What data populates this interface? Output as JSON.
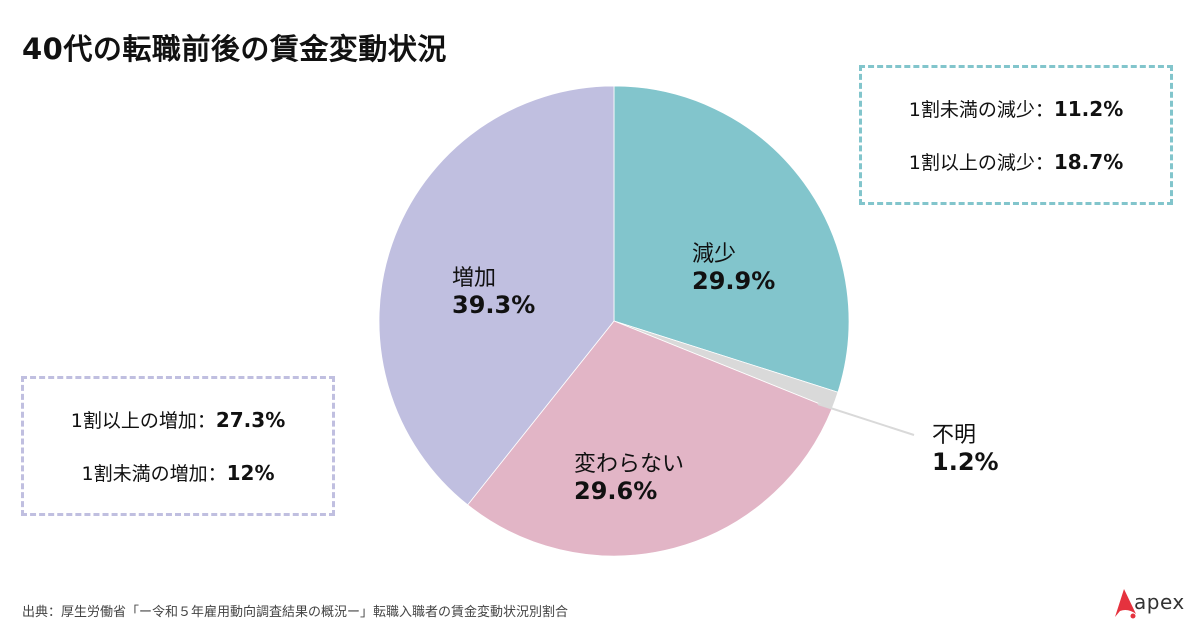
{
  "title": "40代の転職前後の賃金変動状況",
  "chart_data": {
    "type": "pie",
    "title": "40代の転職前後の賃金変動状況",
    "start_angle": "12 o'clock",
    "direction": "clockwise",
    "slices": [
      {
        "label": "減少",
        "value": 29.9,
        "display": "29.9%",
        "color": "#82c5cc"
      },
      {
        "label": "不明",
        "value": 1.2,
        "display": "1.2%",
        "color": "#d9d9d9"
      },
      {
        "label": "変わらない",
        "value": 29.6,
        "display": "29.6%",
        "color": "#e2b5c6"
      },
      {
        "label": "増加",
        "value": 39.3,
        "display": "39.3%",
        "color": "#c0bfe0"
      }
    ],
    "breakdowns": {
      "decrease": [
        {
          "label": "1割未満の減少",
          "value": 11.2,
          "display": "11.2%"
        },
        {
          "label": "1割以上の減少",
          "value": 18.7,
          "display": "18.7%"
        }
      ],
      "increase": [
        {
          "label": "1割以上の増加",
          "value": 27.3,
          "display": "27.3%"
        },
        {
          "label": "1割未満の増加",
          "value": 12,
          "display": "12%"
        }
      ]
    }
  },
  "labels": {
    "decrease": {
      "name": "減少",
      "pct": "29.9%"
    },
    "unknown": {
      "name": "不明",
      "pct": "1.2%"
    },
    "unchanged": {
      "name": "変わらない",
      "pct": "29.6%"
    },
    "increase": {
      "name": "増加",
      "pct": "39.3%"
    }
  },
  "decrease_box": {
    "row1_label": "1割未満の減少：",
    "row1_value": "11.2%",
    "row2_label": "1割以上の減少：",
    "row2_value": "18.7%"
  },
  "increase_box": {
    "row1_label": "1割以上の増加：",
    "row1_value": "27.3%",
    "row2_label": "1割未満の増加：",
    "row2_value": "12%"
  },
  "source": "出典：厚生労働省「ー令和５年雇用動向調査結果の概況ー」転職入職者の賃金変動状況別割合",
  "logo": {
    "text": "apex",
    "color": "#e5323e"
  }
}
